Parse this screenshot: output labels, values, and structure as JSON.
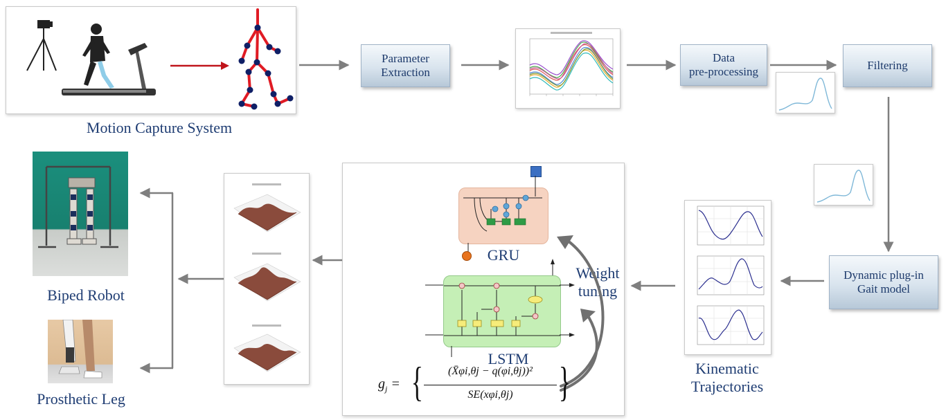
{
  "top_row": {
    "motion_capture_label": "Motion Capture System",
    "parameter_extraction": [
      "Parameter",
      "Extraction"
    ],
    "data_preprocessing": [
      "Data",
      "pre-processing"
    ],
    "filtering": "Filtering"
  },
  "right_column": {
    "dynamic_gait_model": [
      "Dynamic plug-in",
      "Gait model"
    ],
    "kinematic_label": [
      "Kinematic",
      "Trajectories"
    ]
  },
  "center": {
    "gru_label": "GRU",
    "lstm_label": "LSTM",
    "weight_tuning": [
      "Weight",
      "tuning"
    ],
    "formula": {
      "lhs": "g",
      "lhs_sub": "j",
      "numerator": "(X̄φi,θj − q(φi,θj))²",
      "denominator": "SE(xφi,θj)"
    }
  },
  "left_column": {
    "biped_label": "Biped Robot",
    "prosthetic_label": "Prosthetic Leg"
  },
  "colors": {
    "text_blue": "#1f3d73",
    "arrow_gray": "#7f7f7f",
    "red_arrow": "#c0141b",
    "gru_fill": "#f6d3c1",
    "lstm_fill": "#c5efb6",
    "skeleton_red": "#e01b24",
    "joint_navy": "#0f1f66"
  }
}
